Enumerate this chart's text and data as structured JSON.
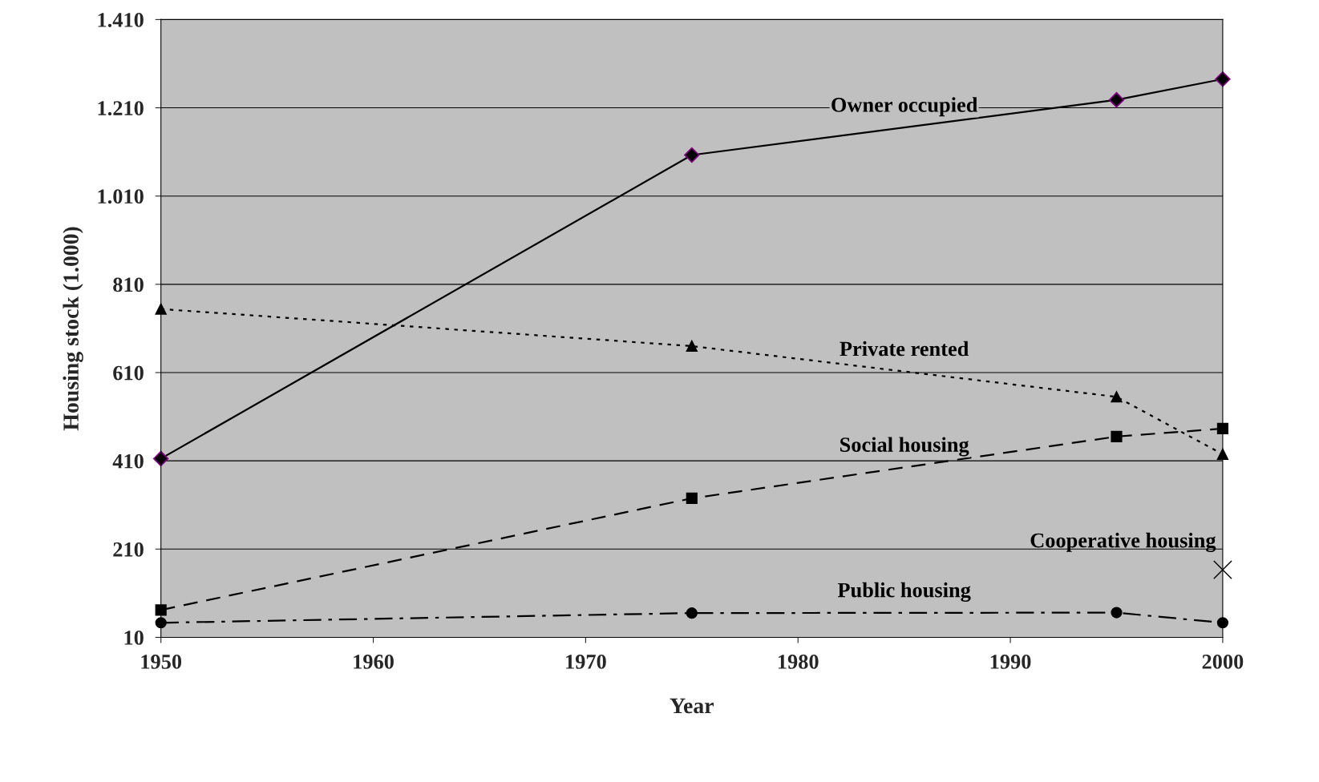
{
  "chart_data": {
    "type": "line",
    "xlabel": "Year",
    "ylabel": "Housing stock (1.000)",
    "x": [
      1950,
      1975,
      1995,
      2000
    ],
    "xlim": [
      1950,
      2000
    ],
    "xticks": [
      1950,
      1960,
      1970,
      1980,
      1990,
      2000
    ],
    "ylim": [
      10,
      1410
    ],
    "yticks": [
      10,
      210,
      {
        "value": 410,
        "label": "410"
      },
      610,
      810,
      {
        "value": 1010,
        "label": "1.010"
      },
      {
        "value": 1210,
        "label": "1.210"
      },
      {
        "value": 1410,
        "label": "1.410"
      }
    ],
    "grid": "y",
    "legend": false,
    "series": [
      {
        "name": "Owner occupied",
        "color": "#000000",
        "marker": "diamond",
        "line_style": "solid",
        "values": [
          415,
          1103,
          1228,
          1275
        ]
      },
      {
        "name": "Private rented",
        "color": "#000000",
        "marker": "triangle",
        "line_style": "dotted",
        "values": [
          754,
          670,
          555,
          425
        ]
      },
      {
        "name": "Social housing",
        "color": "#000000",
        "marker": "square",
        "line_style": "dashed",
        "values": [
          72,
          325,
          465,
          483
        ]
      },
      {
        "name": "Public housing",
        "color": "#000000",
        "marker": "circle",
        "line_style": "dashdot",
        "values": [
          43,
          65,
          66,
          43
        ]
      },
      {
        "name": "Cooperative housing",
        "color": "#000000",
        "marker": "cross",
        "values": [
          null,
          null,
          null,
          163
        ]
      }
    ]
  }
}
